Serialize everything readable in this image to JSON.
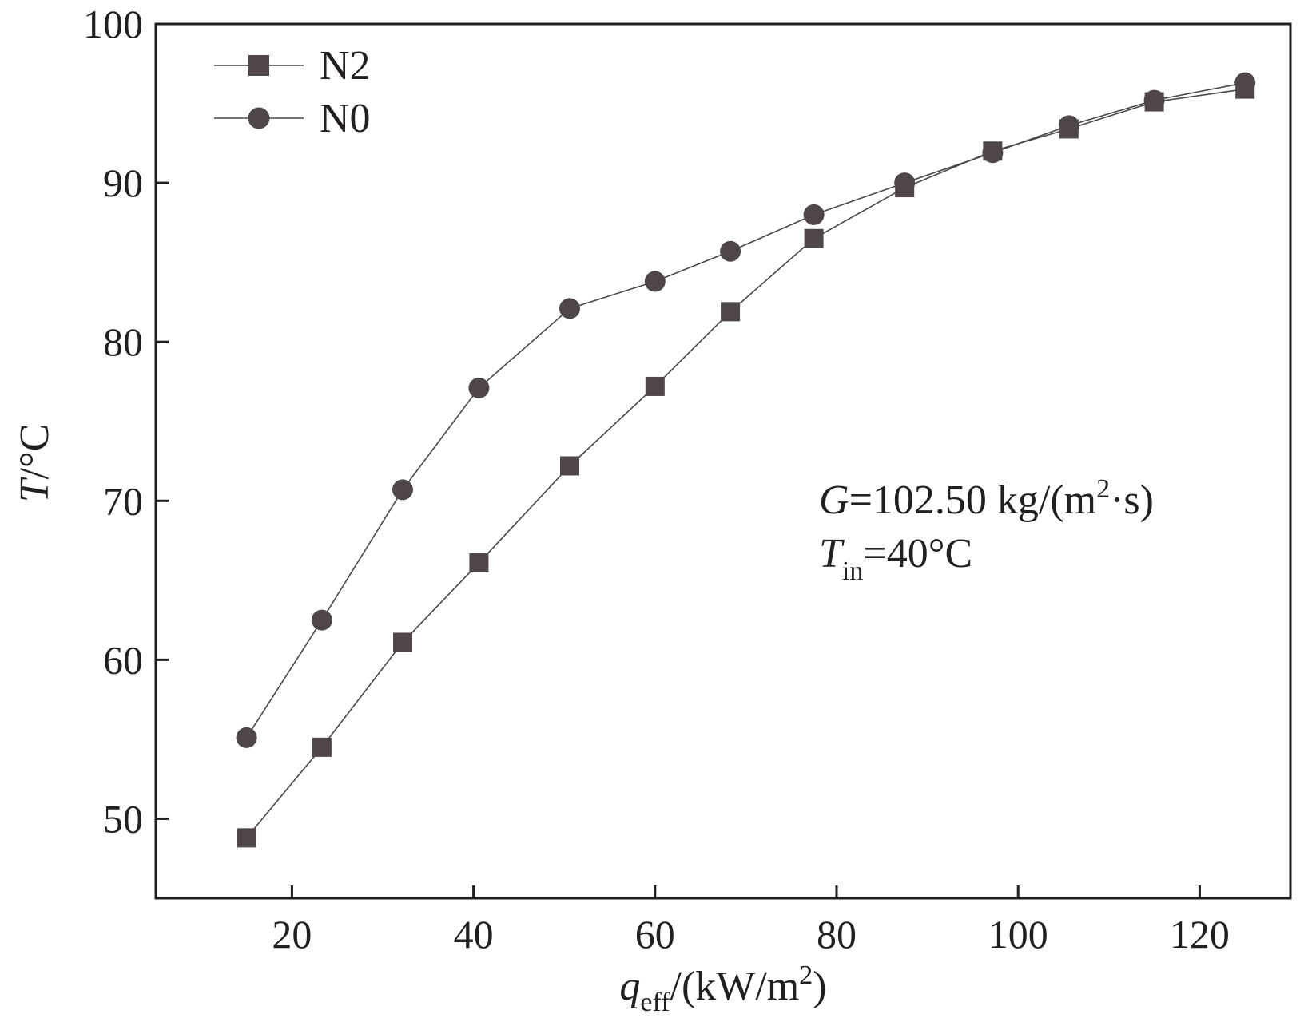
{
  "chart_data": {
    "type": "line",
    "title": "",
    "xlabel": {
      "var": "q",
      "sub": "eff",
      "rest": "/(kW/m",
      "sup": "2",
      "close": ")"
    },
    "ylabel": {
      "var": "T",
      "rest": "/°C"
    },
    "xlim": [
      5,
      130
    ],
    "ylim": [
      45,
      100
    ],
    "xticks": [
      20,
      40,
      60,
      80,
      100,
      120
    ],
    "yticks": [
      50,
      60,
      70,
      80,
      90,
      100
    ],
    "xtick_labels": [
      "20",
      "40",
      "60",
      "80",
      "100",
      "120"
    ],
    "ytick_labels": [
      "50",
      "60",
      "70",
      "80",
      "90",
      "100"
    ],
    "legend_position": "top-left",
    "series": [
      {
        "name": "N2",
        "marker": "square",
        "x": [
          15,
          23.3,
          32.2,
          40.6,
          50.6,
          60,
          68.3,
          77.5,
          87.5,
          97.2,
          105.6,
          115,
          125
        ],
        "y": [
          48.8,
          54.5,
          61.1,
          66.1,
          72.2,
          77.2,
          81.9,
          86.5,
          89.7,
          92.0,
          93.4,
          95.1,
          95.9
        ]
      },
      {
        "name": "N0",
        "marker": "circle",
        "x": [
          15,
          23.3,
          32.2,
          40.6,
          50.6,
          60,
          68.3,
          77.5,
          87.5,
          97.2,
          105.6,
          115,
          125
        ],
        "y": [
          55.1,
          62.5,
          70.7,
          77.1,
          82.1,
          83.8,
          85.7,
          88.0,
          90.0,
          91.9,
          93.6,
          95.2,
          96.3
        ]
      }
    ],
    "annotation": {
      "line1_var": "G",
      "line1_rest": "=102.50 kg/(m",
      "line1_sup": "2",
      "line1_tail": "·s)",
      "line2_var": "T",
      "line2_sub": "in",
      "line2_rest": "=40°C"
    },
    "colors": {
      "line": "#4a4546",
      "marker": "#4f4647",
      "axis": "#231f20"
    }
  }
}
